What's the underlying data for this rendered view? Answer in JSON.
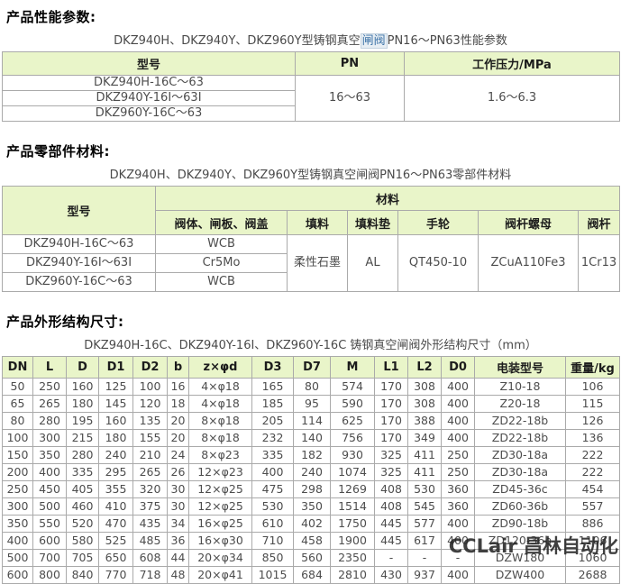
{
  "colors": {
    "table_header_bg": "#e9f5c9",
    "keyword_link": "#3e74a8",
    "body_text": "#4d4d4d"
  },
  "watermark": "CCLair 昌林自动化",
  "section_performance": {
    "heading": "产品性能参数:",
    "caption_prefix": "DKZ940H、DKZ940Y、DKZ960Y型铸钢真空",
    "caption_link": "闸阀",
    "caption_suffix": "PN16～PN63性能参数",
    "table": {
      "col_model": "型号",
      "col_pn": "PN",
      "col_pressure": "工作压力/MPa",
      "models": [
        "DKZ940H-16C～63",
        "DKZ940Y-16I～63I",
        "DKZ960Y-16C～63"
      ],
      "pn": "16～63",
      "pressure": "1.6～6.3"
    }
  },
  "section_materials": {
    "heading": "产品零部件材料:",
    "caption": "DKZ940H、DKZ940Y、DKZ960Y型铸钢真空闸阀PN16～PN63零部件材料",
    "table": {
      "col_model": "型号",
      "col_material": "材料",
      "subcols": [
        "阀体、闸板、阀盖",
        "填料",
        "填料垫",
        "手轮",
        "阀杆螺母",
        "阀杆"
      ],
      "rows": [
        {
          "model": "DKZ940H-16C～63",
          "body": "WCB"
        },
        {
          "model": "DKZ940Y-16I～63I",
          "body": "Cr5Mo"
        },
        {
          "model": "DKZ960Y-16C～63",
          "body": "WCB"
        }
      ],
      "packing": "柔性石墨",
      "packing_pad": "AL",
      "handwheel": "QT450-10",
      "stem_nut": "ZCuA110Fe3",
      "stem": "1Cr13"
    }
  },
  "section_dimensions": {
    "heading": "产品外形结构尺寸:",
    "caption": "DKZ940H-16C、DKZ940Y-16I、DKZ960Y-16C 铸钢真空闸阀外形结构尺寸（mm）",
    "table": {
      "headers": [
        "DN",
        "L",
        "D",
        "D1",
        "D2",
        "b",
        "z×φd",
        "D3",
        "D7",
        "M",
        "L1",
        "L2",
        "D0",
        "电装型号",
        "重量/kg"
      ],
      "rows": [
        [
          "50",
          "250",
          "160",
          "125",
          "100",
          "16",
          "4×φ18",
          "165",
          "80",
          "574",
          "170",
          "308",
          "400",
          "Z10-18",
          "106"
        ],
        [
          "65",
          "265",
          "180",
          "145",
          "120",
          "18",
          "4×φ18",
          "185",
          "95",
          "590",
          "170",
          "308",
          "400",
          "Z20-18",
          "115"
        ],
        [
          "80",
          "280",
          "195",
          "160",
          "135",
          "20",
          "8×φ18",
          "205",
          "114",
          "625",
          "170",
          "388",
          "400",
          "ZD22-18b",
          "126"
        ],
        [
          "100",
          "300",
          "215",
          "180",
          "155",
          "20",
          "8×φ18",
          "232",
          "140",
          "756",
          "170",
          "349",
          "400",
          "ZD22-18b",
          "136"
        ],
        [
          "150",
          "350",
          "280",
          "240",
          "210",
          "24",
          "8×φ23",
          "335",
          "182",
          "930",
          "325",
          "411",
          "250",
          "ZD30-18a",
          "222"
        ],
        [
          "200",
          "400",
          "335",
          "295",
          "265",
          "26",
          "12×φ23",
          "400",
          "240",
          "1074",
          "325",
          "411",
          "250",
          "ZD30-18a",
          "222"
        ],
        [
          "250",
          "450",
          "405",
          "355",
          "320",
          "30",
          "12×φ25",
          "475",
          "298",
          "1269",
          "408",
          "530",
          "360",
          "ZD45-36c",
          "454"
        ],
        [
          "300",
          "500",
          "460",
          "410",
          "375",
          "30",
          "12×φ25",
          "530",
          "350",
          "1514",
          "408",
          "545",
          "360",
          "ZD60-36b",
          "557"
        ],
        [
          "350",
          "550",
          "520",
          "470",
          "435",
          "34",
          "16×φ25",
          "610",
          "402",
          "1750",
          "445",
          "577",
          "400",
          "ZD90-18b",
          "886"
        ],
        [
          "400",
          "600",
          "580",
          "525",
          "485",
          "36",
          "16×φ30",
          "710",
          "458",
          "1900",
          "445",
          "617",
          "400",
          "ZD120-36b",
          "1106"
        ],
        [
          "500",
          "700",
          "705",
          "650",
          "608",
          "44",
          "20×φ34",
          "850",
          "560",
          "2350",
          "-",
          "-",
          "-",
          "DZW180",
          "1060"
        ],
        [
          "600",
          "800",
          "840",
          "770",
          "718",
          "48",
          "20×φ41",
          "1015",
          "684",
          "2810",
          "430",
          "937",
          "400",
          "DZW400",
          "2688"
        ]
      ]
    }
  }
}
